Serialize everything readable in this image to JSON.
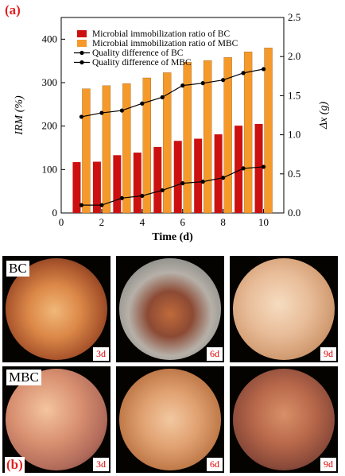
{
  "panel_a_label": "(a)",
  "panel_b_label": "(b)",
  "chart_data": {
    "type": "bar",
    "xlabel": "Time (d)",
    "ylabel": "IRM (%)",
    "y2label": "Δx (g)",
    "xlim": [
      0,
      11
    ],
    "ylim": [
      0,
      450
    ],
    "y2lim": [
      0,
      2.5
    ],
    "xticks": [
      0,
      2,
      4,
      6,
      8,
      10
    ],
    "yticks": [
      0,
      100,
      200,
      300,
      400
    ],
    "y2ticks": [
      0.0,
      0.5,
      1.0,
      1.5,
      2.0,
      2.5
    ],
    "x": [
      1,
      2,
      3,
      4,
      5,
      6,
      7,
      8,
      9,
      10
    ],
    "series": [
      {
        "name": "Microbial immobilization ratio of BC",
        "kind": "bar",
        "axis": "left",
        "color": "#cc1010",
        "values": [
          117,
          118,
          133,
          139,
          152,
          166,
          171,
          181,
          201,
          205
        ]
      },
      {
        "name": "Microbial immobilization ratio of MBC",
        "kind": "bar",
        "axis": "left",
        "color": "#f59a2a",
        "values": [
          286,
          293,
          298,
          311,
          323,
          347,
          351,
          358,
          371,
          380
        ]
      },
      {
        "name": "Quality difference of BC",
        "kind": "line",
        "axis": "right",
        "color": "#000000",
        "values": [
          1.23,
          1.28,
          1.31,
          1.4,
          1.48,
          1.63,
          1.66,
          1.7,
          1.79,
          1.84
        ]
      },
      {
        "name": "Quality difference of MBC",
        "kind": "line",
        "axis": "right",
        "color": "#000000",
        "values": [
          0.1,
          0.1,
          0.19,
          0.22,
          0.29,
          0.38,
          0.4,
          0.45,
          0.57,
          0.59
        ]
      }
    ],
    "legend": "top-left"
  },
  "micrographs": {
    "rows": [
      {
        "label": "BC",
        "days": [
          "3d",
          "6d",
          "9d"
        ]
      },
      {
        "label": "MBC",
        "days": [
          "3d",
          "6d",
          "9d"
        ]
      }
    ]
  }
}
